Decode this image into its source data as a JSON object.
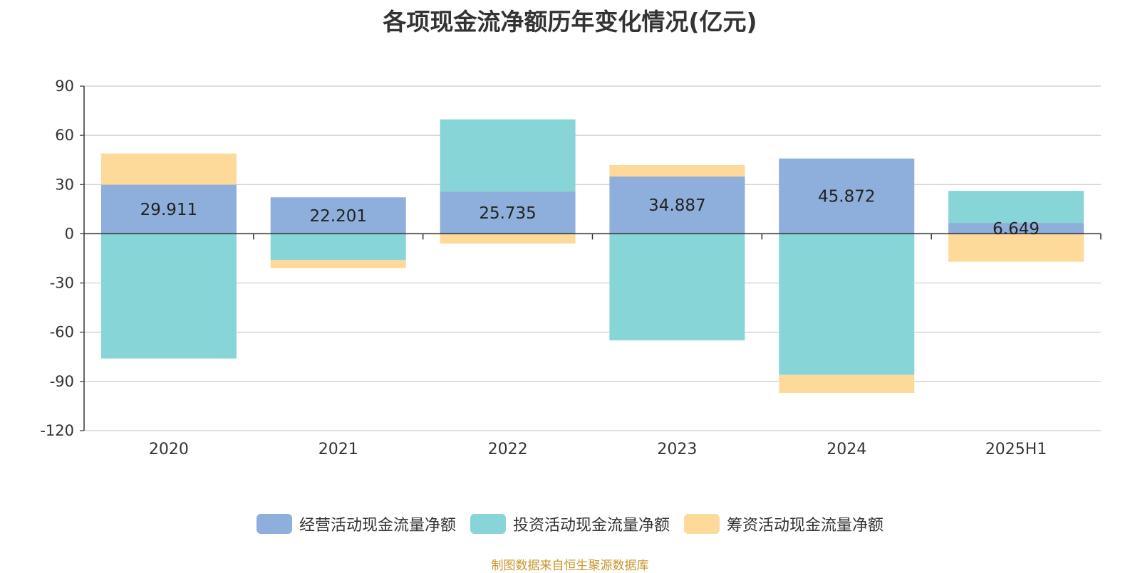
{
  "title": "各项现金流净额历年变化情况(亿元)",
  "source": "制图数据来自恒生聚源数据库",
  "colors": {
    "operating": "#8eaedb",
    "investing": "#88d5d8",
    "financing": "#fdd99a"
  },
  "chart_data": {
    "type": "bar",
    "stacked": true,
    "categories": [
      "2020",
      "2021",
      "2022",
      "2023",
      "2024",
      "2025H1"
    ],
    "ylim": [
      -120,
      90
    ],
    "yticks": [
      90,
      60,
      30,
      0,
      -30,
      -60,
      -90,
      -120
    ],
    "grid": true,
    "legend": "bottom",
    "series": [
      {
        "name": "经营活动现金流量净额",
        "values": [
          29.911,
          22.201,
          25.735,
          34.887,
          45.872,
          6.649
        ]
      },
      {
        "name": "投资活动现金流量净额",
        "values": [
          -76,
          -16,
          44,
          -65,
          -86,
          19.5
        ]
      },
      {
        "name": "筹资活动现金流量净额",
        "values": [
          19,
          -5,
          -6,
          7,
          -11,
          -17
        ]
      }
    ],
    "data_labels": [
      "29.911",
      "22.201",
      "25.735",
      "34.887",
      "45.872",
      "6.649"
    ]
  }
}
